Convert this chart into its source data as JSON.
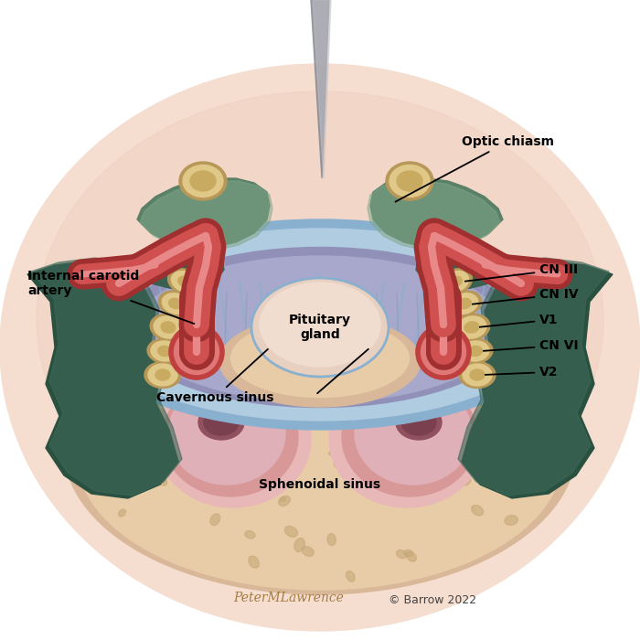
{
  "labels": {
    "optic_chiasm": "Optic chiasm",
    "internal_carotid": "Internal carotid\nartery",
    "pituitary": "Pituitary\ngland",
    "cavernous_sinus": "Cavernous sinus",
    "sphenoidal_sinus": "Sphenoidal sinus",
    "cn3": "CN III",
    "cn4": "CN IV",
    "v1": "V1",
    "cn6": "CN VI",
    "v2": "V2"
  },
  "colors": {
    "bg_white": "#ffffff",
    "skin": "#f0d0c0",
    "skin2": "#f5ddd0",
    "bone_tan": "#d8b898",
    "bone_light": "#e8cca8",
    "bone_dot": "#c8a878",
    "cavernous_blue_outer": "#8ab0d0",
    "cavernous_blue": "#b0cce0",
    "cavernous_purple": "#9090b8",
    "cavernous_purple2": "#a8a8cc",
    "dura_green_dark": "#3a6050",
    "dura_green": "#5a8068",
    "dura_green_light": "#80a888",
    "artery_dark": "#a03030",
    "artery_mid": "#c85050",
    "artery_light": "#e07878",
    "artery_wall": "#d46060",
    "nerve_outer": "#b89858",
    "nerve_mid": "#e0c888",
    "nerve_inner": "#c8aa60",
    "pituitary_bg": "#e8d0c0",
    "pituitary_light": "#f0ddd0",
    "sphenoid_outer": "#e8b8b8",
    "sphenoid_mid": "#d89898",
    "sphenoid_dark": "#c07878",
    "sphenoid_hole": "#905060",
    "stalk_dark": "#909098",
    "stalk_light": "#c0c0c8",
    "ica_xsec_outer": "#e07070",
    "ica_xsec_wall": "#c04040",
    "ica_xsec_lumen": "#7a1818",
    "ica_xsec_center": "#b02020",
    "trabecular_net": "#8899b8",
    "lateral_green": "#2a5040",
    "lateral_green2": "#3d6858",
    "black": "#111111"
  },
  "copyright": "© Barrow 2022",
  "artist": "PeterMLawrence"
}
